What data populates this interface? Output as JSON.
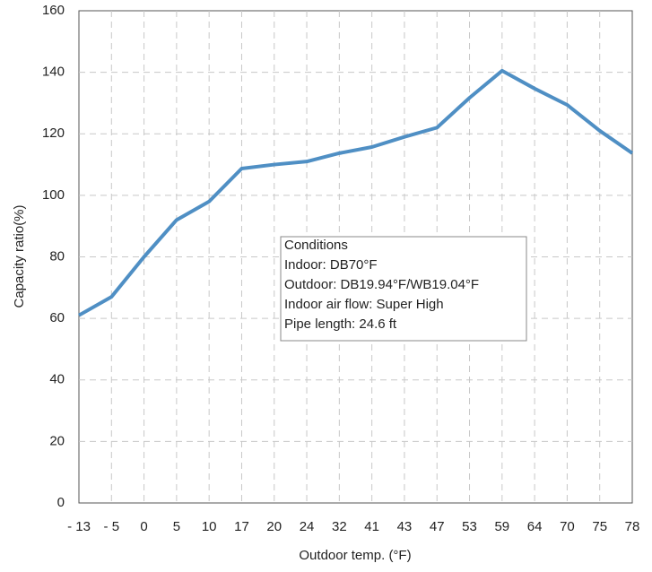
{
  "chart_data": {
    "type": "line",
    "xlabel": "Outdoor temp. (°F)",
    "ylabel": "Capacity ratio(%)",
    "categories": [
      "- 13",
      "- 5",
      "0",
      "5",
      "10",
      "17",
      "20",
      "24",
      "32",
      "41",
      "43",
      "47",
      "53",
      "59",
      "64",
      "70",
      "75",
      "78"
    ],
    "series": [
      {
        "color": "#4f8fc4",
        "values": [
          61,
          67,
          80,
          92,
          98,
          108.7,
          110,
          111,
          113.7,
          115.7,
          119,
          122,
          131.7,
          140.5,
          134.7,
          129.4,
          121,
          113.7
        ]
      }
    ],
    "ylim": [
      0,
      160
    ],
    "yticks": [
      0,
      20,
      40,
      60,
      80,
      100,
      120,
      140,
      160
    ],
    "grid": true,
    "annotation": [
      "Conditions",
      "Indoor: DB70°F",
      "Outdoor: DB19.94°F/WB19.04°F",
      "Indoor air flow: Super High",
      "Pipe length: 24.6 ft"
    ]
  }
}
